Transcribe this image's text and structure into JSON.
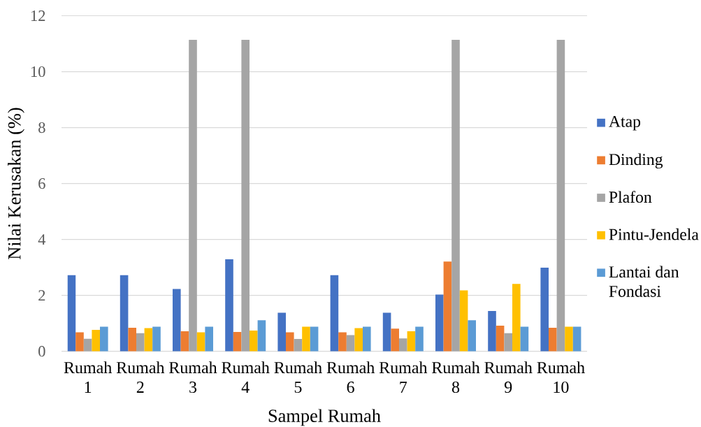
{
  "chart_data": {
    "type": "bar",
    "xlabel": "Sampel Rumah",
    "ylabel": "Nilai Kerusakan (%)",
    "categories": [
      "Rumah 1",
      "Rumah 2",
      "Rumah 3",
      "Rumah 4",
      "Rumah 5",
      "Rumah 6",
      "Rumah 7",
      "Rumah 8",
      "Rumah 9",
      "Rumah 10"
    ],
    "series": [
      {
        "name": "Atap",
        "color": "#4472c4",
        "values": [
          2.72,
          2.72,
          2.23,
          3.29,
          1.38,
          2.72,
          1.38,
          2.03,
          1.44,
          2.99
        ]
      },
      {
        "name": "Dinding",
        "color": "#ed7d31",
        "values": [
          0.68,
          0.84,
          0.72,
          0.69,
          0.68,
          0.68,
          0.81,
          3.21,
          0.92,
          0.84
        ]
      },
      {
        "name": "Plafon",
        "color": "#a5a5a5",
        "values": [
          0.45,
          0.65,
          11.14,
          11.14,
          0.44,
          0.58,
          0.46,
          11.14,
          0.65,
          11.14
        ]
      },
      {
        "name": "Pintu-Jendela",
        "color": "#ffc000",
        "values": [
          0.77,
          0.83,
          0.68,
          0.74,
          0.88,
          0.83,
          0.72,
          2.18,
          2.41,
          0.88
        ]
      },
      {
        "name": "Lantai dan Fondasi",
        "color": "#5b9bd5",
        "values": [
          0.88,
          0.88,
          0.88,
          1.11,
          0.88,
          0.88,
          0.88,
          1.11,
          0.88,
          0.88
        ]
      }
    ],
    "ylim": [
      0,
      12
    ],
    "yticks": [
      0,
      2,
      4,
      6,
      8,
      10,
      12
    ],
    "grid": "y",
    "legend": "right"
  }
}
